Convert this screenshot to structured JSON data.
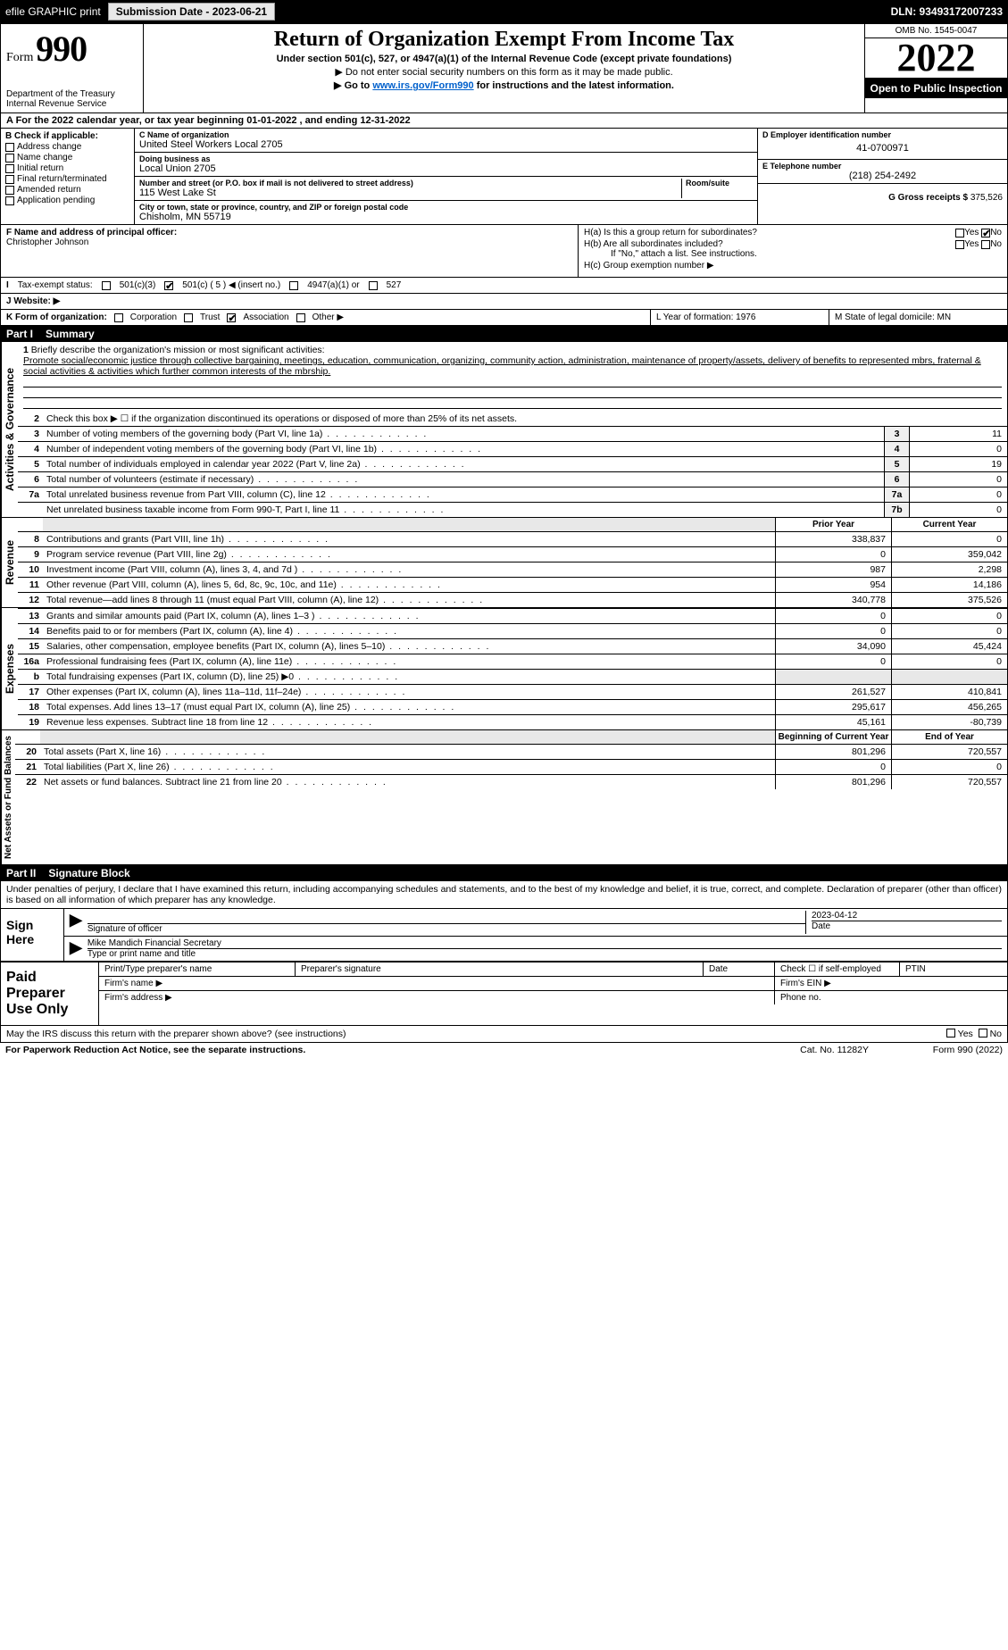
{
  "topbar": {
    "efile": "efile GRAPHIC print",
    "submission_label": "Submission Date - 2023-06-21",
    "dln": "DLN: 93493172007233"
  },
  "header": {
    "form_word": "Form",
    "form_number": "990",
    "dept1": "Department of the Treasury",
    "dept2": "Internal Revenue Service",
    "title": "Return of Organization Exempt From Income Tax",
    "subtitle": "Under section 501(c), 527, or 4947(a)(1) of the Internal Revenue Code (except private foundations)",
    "note1": "▶ Do not enter social security numbers on this form as it may be made public.",
    "note2_pre": "▶ Go to ",
    "note2_link": "www.irs.gov/Form990",
    "note2_post": " for instructions and the latest information.",
    "omb": "OMB No. 1545-0047",
    "year": "2022",
    "open_public": "Open to Public Inspection"
  },
  "row_a": {
    "text": "A For the 2022 calendar year, or tax year beginning 01-01-2022    , and ending 12-31-2022"
  },
  "col_b": {
    "label": "B Check if applicable:",
    "items": [
      "Address change",
      "Name change",
      "Initial return",
      "Final return/terminated",
      "Amended return",
      "Application pending"
    ]
  },
  "col_c": {
    "name_label": "C Name of organization",
    "name": "United Steel Workers Local 2705",
    "dba_label": "Doing business as",
    "dba": "Local Union 2705",
    "street_label": "Number and street (or P.O. box if mail is not delivered to street address)",
    "room_label": "Room/suite",
    "street": "115 West Lake St",
    "city_label": "City or town, state or province, country, and ZIP or foreign postal code",
    "city": "Chisholm, MN  55719"
  },
  "col_deg": {
    "d_label": "D Employer identification number",
    "d_val": "41-0700971",
    "e_label": "E Telephone number",
    "e_val": "(218) 254-2492",
    "g_label": "G Gross receipts $",
    "g_val": "375,526"
  },
  "row_f": {
    "label": "F  Name and address of principal officer:",
    "name": "Christopher Johnson"
  },
  "row_h": {
    "ha": "H(a)  Is this a group return for subordinates?",
    "hb": "H(b)  Are all subordinates included?",
    "hb_note": "If \"No,\" attach a list. See instructions.",
    "hc": "H(c)  Group exemption number ▶",
    "yes": "Yes",
    "no": "No"
  },
  "row_i": {
    "label": "Tax-exempt status:",
    "opt1": "501(c)(3)",
    "opt2": "501(c) ( 5 ) ◀ (insert no.)",
    "opt3": "4947(a)(1) or",
    "opt4": "527"
  },
  "row_j": {
    "label": "J   Website: ▶"
  },
  "row_k": {
    "k": "K Form of organization:",
    "corp": "Corporation",
    "trust": "Trust",
    "assoc": "Association",
    "other": "Other ▶",
    "l": "L Year of formation: 1976",
    "m": "M State of legal domicile: MN"
  },
  "part1": {
    "label": "Part I",
    "title": "Summary"
  },
  "mission": {
    "num": "1",
    "label": "Briefly describe the organization's mission or most significant activities:",
    "text": "Promote social/economic justice through collective bargaining, meetings, education, communication, organizing, community action, administration, maintenance of property/assets, delivery of benefits to represented mbrs, fraternal & social activities & activities which further common interests of the mbrship."
  },
  "gov_lines": [
    {
      "n": "2",
      "t": "Check this box ▶ ☐  if the organization discontinued its operations or disposed of more than 25% of its net assets."
    },
    {
      "n": "3",
      "t": "Number of voting members of the governing body (Part VI, line 1a)",
      "box": "3",
      "v": "11"
    },
    {
      "n": "4",
      "t": "Number of independent voting members of the governing body (Part VI, line 1b)",
      "box": "4",
      "v": "0"
    },
    {
      "n": "5",
      "t": "Total number of individuals employed in calendar year 2022 (Part V, line 2a)",
      "box": "5",
      "v": "19"
    },
    {
      "n": "6",
      "t": "Total number of volunteers (estimate if necessary)",
      "box": "6",
      "v": "0"
    },
    {
      "n": "7a",
      "t": "Total unrelated business revenue from Part VIII, column (C), line 12",
      "box": "7a",
      "v": "0"
    },
    {
      "n": "",
      "t": "Net unrelated business taxable income from Form 990-T, Part I, line 11",
      "box": "7b",
      "v": "0"
    }
  ],
  "rev_header": {
    "prior": "Prior Year",
    "current": "Current Year"
  },
  "rev_lines": [
    {
      "n": "8",
      "t": "Contributions and grants (Part VIII, line 1h)",
      "p": "338,837",
      "c": "0"
    },
    {
      "n": "9",
      "t": "Program service revenue (Part VIII, line 2g)",
      "p": "0",
      "c": "359,042"
    },
    {
      "n": "10",
      "t": "Investment income (Part VIII, column (A), lines 3, 4, and 7d )",
      "p": "987",
      "c": "2,298"
    },
    {
      "n": "11",
      "t": "Other revenue (Part VIII, column (A), lines 5, 6d, 8c, 9c, 10c, and 11e)",
      "p": "954",
      "c": "14,186"
    },
    {
      "n": "12",
      "t": "Total revenue—add lines 8 through 11 (must equal Part VIII, column (A), line 12)",
      "p": "340,778",
      "c": "375,526"
    }
  ],
  "exp_lines": [
    {
      "n": "13",
      "t": "Grants and similar amounts paid (Part IX, column (A), lines 1–3 )",
      "p": "0",
      "c": "0"
    },
    {
      "n": "14",
      "t": "Benefits paid to or for members (Part IX, column (A), line 4)",
      "p": "0",
      "c": "0"
    },
    {
      "n": "15",
      "t": "Salaries, other compensation, employee benefits (Part IX, column (A), lines 5–10)",
      "p": "34,090",
      "c": "45,424"
    },
    {
      "n": "16a",
      "t": "Professional fundraising fees (Part IX, column (A), line 11e)",
      "p": "0",
      "c": "0"
    },
    {
      "n": "b",
      "t": "Total fundraising expenses (Part IX, column (D), line 25) ▶0",
      "p": "",
      "c": "",
      "shade": true
    },
    {
      "n": "17",
      "t": "Other expenses (Part IX, column (A), lines 11a–11d, 11f–24e)",
      "p": "261,527",
      "c": "410,841"
    },
    {
      "n": "18",
      "t": "Total expenses. Add lines 13–17 (must equal Part IX, column (A), line 25)",
      "p": "295,617",
      "c": "456,265"
    },
    {
      "n": "19",
      "t": "Revenue less expenses. Subtract line 18 from line 12",
      "p": "45,161",
      "c": "-80,739"
    }
  ],
  "na_header": {
    "beg": "Beginning of Current Year",
    "end": "End of Year"
  },
  "na_lines": [
    {
      "n": "20",
      "t": "Total assets (Part X, line 16)",
      "p": "801,296",
      "c": "720,557"
    },
    {
      "n": "21",
      "t": "Total liabilities (Part X, line 26)",
      "p": "0",
      "c": "0"
    },
    {
      "n": "22",
      "t": "Net assets or fund balances. Subtract line 21 from line 20",
      "p": "801,296",
      "c": "720,557"
    }
  ],
  "vtabs": {
    "gov": "Activities & Governance",
    "rev": "Revenue",
    "exp": "Expenses",
    "na": "Net Assets or Fund Balances"
  },
  "part2": {
    "label": "Part II",
    "title": "Signature Block"
  },
  "sig": {
    "decl": "Under penalties of perjury, I declare that I have examined this return, including accompanying schedules and statements, and to the best of my knowledge and belief, it is true, correct, and complete. Declaration of preparer (other than officer) is based on all information of which preparer has any knowledge.",
    "sign_here": "Sign Here",
    "sig_officer": "Signature of officer",
    "date": "Date",
    "date_val": "2023-04-12",
    "name_title": "Mike Mandich Financial Secretary",
    "type_label": "Type or print name and title"
  },
  "paid": {
    "title": "Paid Preparer Use Only",
    "c1": "Print/Type preparer's name",
    "c2": "Preparer's signature",
    "c3": "Date",
    "c4": "Check ☐ if self-employed",
    "c5": "PTIN",
    "firm_name": "Firm's name   ▶",
    "firm_ein": "Firm's EIN ▶",
    "firm_addr": "Firm's address ▶",
    "phone": "Phone no."
  },
  "footer": {
    "discuss": "May the IRS discuss this return with the preparer shown above? (see instructions)",
    "yes": "Yes",
    "no": "No",
    "paperwork": "For Paperwork Reduction Act Notice, see the separate instructions.",
    "cat": "Cat. No. 11282Y",
    "formref": "Form 990 (2022)"
  },
  "colors": {
    "black": "#000000",
    "link": "#0060cc",
    "shade": "#e8e8e8"
  }
}
